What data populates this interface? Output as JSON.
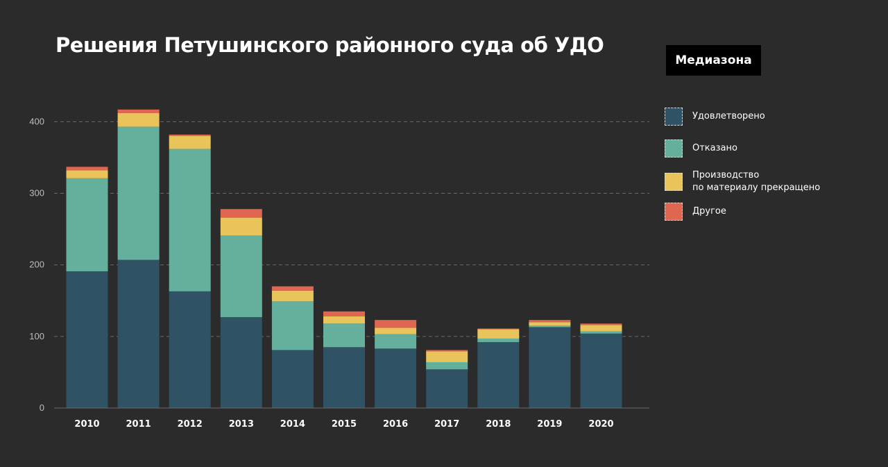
{
  "title": "Решения Петушинского районного суда об УДО",
  "brand": "Медиазона",
  "colors": {
    "background": "#2b2b2b",
    "grid": "#6a6a6a",
    "axis_text": "#bdbdbd",
    "x_text": "#ffffff"
  },
  "legend": [
    {
      "label": "Удовлетворено",
      "color": "#2f5264"
    },
    {
      "label": "Отказано",
      "color": "#65b09d"
    },
    {
      "label": "Производство\nпо материалу прекращено",
      "color": "#e8c45a"
    },
    {
      "label": "Другое",
      "color": "#df6650"
    }
  ],
  "chart_data": {
    "type": "bar",
    "stacked": true,
    "categories": [
      "2010",
      "2011",
      "2012",
      "2013",
      "2014",
      "2015",
      "2016",
      "2017",
      "2018",
      "2019",
      "2020"
    ],
    "series": [
      {
        "name": "Удовлетворено",
        "color": "#2f5264",
        "values": [
          191,
          207,
          163,
          127,
          81,
          85,
          83,
          54,
          92,
          113,
          104
        ]
      },
      {
        "name": "Отказано",
        "color": "#65b09d",
        "values": [
          130,
          186,
          199,
          114,
          68,
          33,
          20,
          10,
          5,
          2,
          3
        ]
      },
      {
        "name": "Производство по материалу прекращено",
        "color": "#e8c45a",
        "values": [
          11,
          19,
          18,
          25,
          15,
          10,
          9,
          15,
          13,
          5,
          9
        ]
      },
      {
        "name": "Другое",
        "color": "#df6650",
        "values": [
          5,
          5,
          2,
          12,
          6,
          7,
          11,
          2,
          1,
          3,
          2
        ]
      }
    ],
    "y_ticks": [
      0,
      100,
      200,
      300,
      400
    ],
    "ylim": [
      0,
      420
    ],
    "grid": true,
    "legend_position": "right"
  }
}
